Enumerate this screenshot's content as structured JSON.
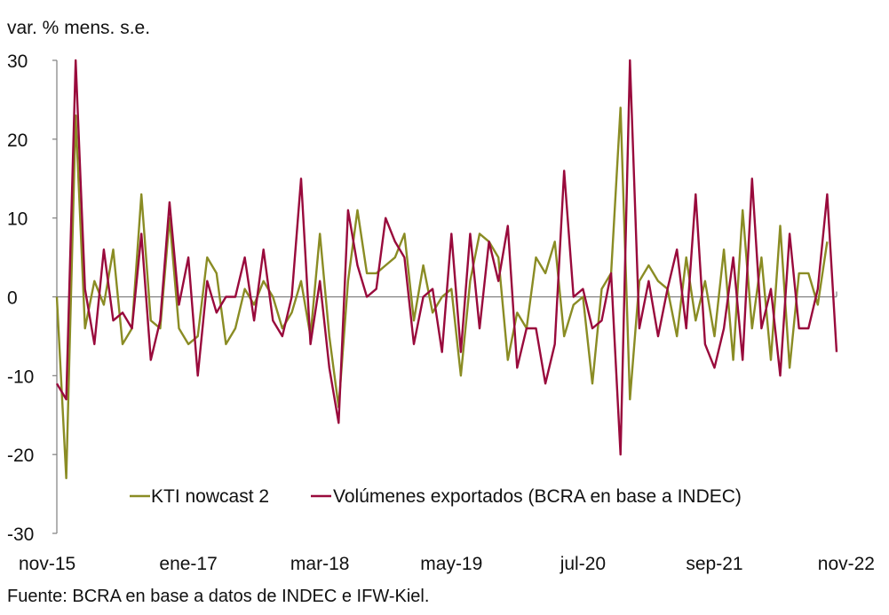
{
  "chart_data": {
    "type": "line",
    "ylabel": "var. % mens. s.e.",
    "source": "Fuente: BCRA en base a datos de INDEC e IFW-Kiel.",
    "ylim": [
      -30,
      30
    ],
    "yticks": [
      30,
      20,
      10,
      0,
      -10,
      -20,
      -30
    ],
    "ytick_labels": [
      "30",
      "20",
      "10",
      "0",
      "-10",
      "-20",
      "-30"
    ],
    "xtick_labels": [
      "nov-15",
      "ene-17",
      "mar-18",
      "may-19",
      "jul-20",
      "sep-21",
      "nov-22"
    ],
    "xtick_index": [
      0,
      14,
      28,
      42,
      56,
      70,
      84
    ],
    "legend_position": "bottom",
    "colors": {
      "kti": "#8a8c24",
      "vol": "#990a3c",
      "axis": "#7f7f7f"
    },
    "series": [
      {
        "name": "KTI nowcast 2",
        "key": "kti",
        "values": [
          0,
          -23,
          23,
          -4,
          2,
          -1,
          6,
          -6,
          -4,
          13,
          -3,
          -4,
          10,
          -4,
          -6,
          -5,
          5,
          3,
          -6,
          -4,
          1,
          -1,
          2,
          0,
          -4,
          -2,
          2,
          -5,
          8,
          -5,
          -14,
          2,
          11,
          3,
          3,
          4,
          5,
          8,
          -3,
          4,
          -2,
          0,
          1,
          -10,
          2,
          8,
          7,
          5,
          -8,
          -2,
          -4,
          5,
          3,
          7,
          -5,
          -1,
          0,
          -11,
          1,
          3,
          24,
          -13,
          2,
          4,
          2,
          1,
          -5,
          5,
          -3,
          2,
          -5,
          6,
          -8,
          11,
          -4,
          5,
          -8,
          9,
          -9,
          3,
          3,
          -1,
          7
        ]
      },
      {
        "name": "Volúmenes exportados (BCRA en base a INDEC)",
        "key": "vol",
        "values": [
          -11,
          -13,
          30,
          1,
          -6,
          6,
          -3,
          -2,
          -4,
          8,
          -8,
          -3,
          12,
          -1,
          5,
          -10,
          2,
          -2,
          0,
          0,
          5,
          -3,
          6,
          -3,
          -5,
          0,
          15,
          -6,
          2,
          -9,
          -16,
          11,
          4,
          0,
          1,
          10,
          7,
          5,
          -6,
          0,
          1,
          -7,
          8,
          -7,
          8,
          -4,
          7,
          2,
          9,
          -9,
          -4,
          -4,
          -11,
          -6,
          16,
          0,
          1,
          -4,
          -3,
          3,
          -20,
          30,
          -4,
          2,
          -5,
          1,
          6,
          -4,
          13,
          -6,
          -9,
          -4,
          5,
          -8,
          15,
          -4,
          1,
          -10,
          8,
          -4,
          -4,
          1,
          13,
          -7
        ]
      }
    ]
  }
}
